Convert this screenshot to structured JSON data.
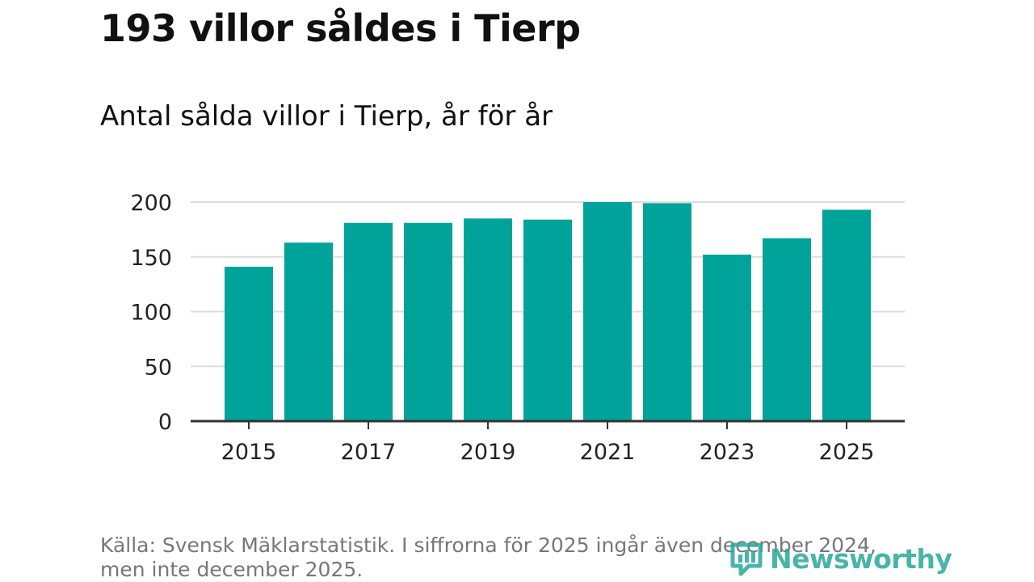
{
  "header": {
    "title": "193 villor såldes i Tierp",
    "subtitle": "Antal sålda villor i Tierp, år för år"
  },
  "footer": {
    "source": "Källa: Svensk Mäklarstatistik. I siffrorna för 2025 ingår även december 2024, men inte december 2025.",
    "logo_text": "Newsworthy",
    "logo_icon": "bar-chart-logo-icon"
  },
  "colors": {
    "bar": "#00a39a",
    "grid": "#dddddd",
    "axis": "#333333",
    "logo": "#2aa79b"
  },
  "chart_data": {
    "type": "bar",
    "title": "193 villor såldes i Tierp",
    "subtitle": "Antal sålda villor i Tierp, år för år",
    "xlabel": "",
    "ylabel": "",
    "categories": [
      "2015",
      "2016",
      "2017",
      "2018",
      "2019",
      "2020",
      "2021",
      "2022",
      "2023",
      "2024",
      "2025"
    ],
    "values": [
      141,
      163,
      181,
      181,
      185,
      184,
      200,
      199,
      152,
      167,
      193
    ],
    "x_tick_labels": [
      "2015",
      "2017",
      "2019",
      "2021",
      "2023",
      "2025"
    ],
    "y_ticks": [
      0,
      50,
      100,
      150,
      200
    ],
    "ylim": [
      0,
      200
    ],
    "grid": true,
    "legend": "none"
  }
}
